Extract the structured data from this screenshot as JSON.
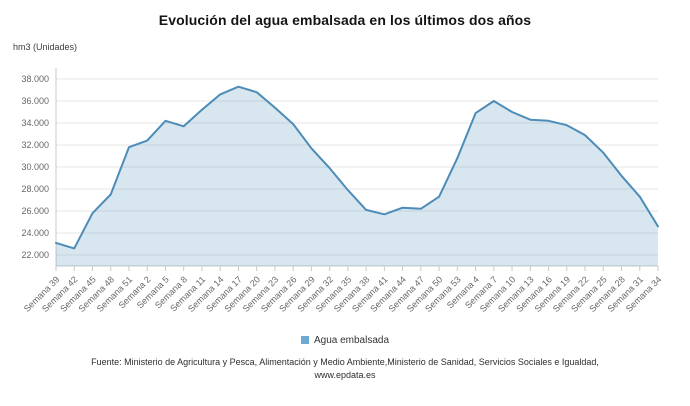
{
  "chart_data": {
    "type": "area",
    "title": "Evolución del agua embalsada en los últimos dos años",
    "ylabel": "hm3 (Unidades)",
    "xlabel": "",
    "legend": [
      "Agua embalsada"
    ],
    "legend_position": "bottom",
    "grid": true,
    "ylim": [
      21000,
      39000
    ],
    "y_tick_labels": [
      "22.000",
      "24.000",
      "26.000",
      "28.000",
      "30.000",
      "32.000",
      "34.000",
      "36.000",
      "38.000"
    ],
    "categories": [
      "Semana 39",
      "Semana 42",
      "Semana 45",
      "Semana 48",
      "Semana 51",
      "Semana 2",
      "Semana 5",
      "Semana 8",
      "Semana 11",
      "Semana 14",
      "Semana 17",
      "Semana 20",
      "Semana 23",
      "Semana 26",
      "Semana 29",
      "Semana 32",
      "Semana 35",
      "Semana 38",
      "Semana 41",
      "Semana 44",
      "Semana 47",
      "Semana 50",
      "Semana 53",
      "Semana 4",
      "Semana 7",
      "Semana 10",
      "Semana 13",
      "Semana 16",
      "Semana 19",
      "Semana 22",
      "Semana 25",
      "Semana 28",
      "Semana 31",
      "Semana 34"
    ],
    "values": [
      23100,
      22600,
      25800,
      27500,
      31800,
      32400,
      34200,
      33700,
      35200,
      36600,
      37300,
      36800,
      35400,
      33900,
      31700,
      29900,
      27900,
      26100,
      25700,
      26300,
      26200,
      27300,
      30800,
      34900,
      36000,
      35000,
      34300,
      34200,
      33800,
      32900,
      31300,
      29200,
      27300,
      24600
    ]
  },
  "colors": {
    "line": "#4d8cb8",
    "fill": "#4d8cb8",
    "fill_opacity": 0.22,
    "legend_swatch": "#6ea9d4",
    "grid": "#e6e6e6",
    "axis": "#c9c9c9",
    "tick_text": "#666666"
  },
  "footer": {
    "source_line": "Fuente: Ministerio de Agricultura y Pesca, Alimentación y Medio Ambiente,Ministerio de Sanidad, Servicios Sociales e Igualdad,",
    "url": "www.epdata.es"
  }
}
